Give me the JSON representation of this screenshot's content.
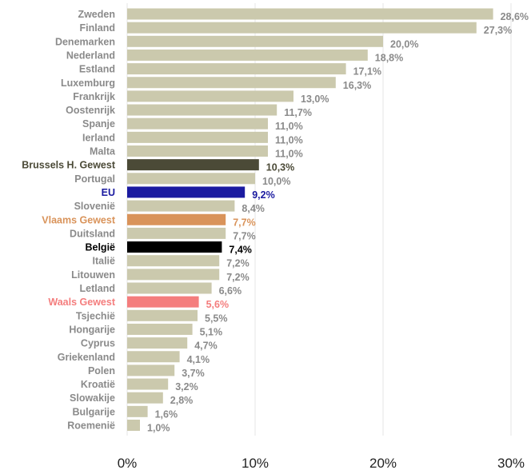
{
  "chart_data": {
    "type": "bar",
    "orientation": "horizontal",
    "title": "",
    "xlabel": "",
    "ylabel": "",
    "xlim": [
      0,
      30
    ],
    "x_ticks": [
      0,
      10,
      20,
      30
    ],
    "x_tick_labels": [
      "0%",
      "10%",
      "20%",
      "30%"
    ],
    "grid": true,
    "categories": [
      "Zweden",
      "Finland",
      "Denemarken",
      "Nederland",
      "Estland",
      "Luxemburg",
      "Frankrijk",
      "Oostenrijk",
      "Spanje",
      "Ierland",
      "Malta",
      "Brussels H. Gewest",
      "Portugal",
      "EU",
      "Slovenië",
      "Vlaams Gewest",
      "Duitsland",
      "België",
      "Italië",
      "Litouwen",
      "Letland",
      "Waals Gewest",
      "Tsjechië",
      "Hongarije",
      "Cyprus",
      "Griekenland",
      "Polen",
      "Kroatië",
      "Slowakije",
      "Bulgarije",
      "Roemenië"
    ],
    "values": [
      28.6,
      27.3,
      20.0,
      18.8,
      17.1,
      16.3,
      13.0,
      11.7,
      11.0,
      11.0,
      11.0,
      10.3,
      10.0,
      9.2,
      8.4,
      7.7,
      7.7,
      7.4,
      7.2,
      7.2,
      6.6,
      5.6,
      5.5,
      5.1,
      4.7,
      4.1,
      3.7,
      3.2,
      2.8,
      1.6,
      1.0
    ],
    "value_labels": [
      "28,6%",
      "27,3%",
      "20,0%",
      "18,8%",
      "17,1%",
      "16,3%",
      "13,0%",
      "11,7%",
      "11,0%",
      "11,0%",
      "11,0%",
      "10,3%",
      "10,0%",
      "9,2%",
      "8,4%",
      "7,7%",
      "7,7%",
      "7,4%",
      "7,2%",
      "7,2%",
      "6,6%",
      "5,6%",
      "5,5%",
      "5,1%",
      "4,7%",
      "4,1%",
      "3,7%",
      "3,2%",
      "2,8%",
      "1,6%",
      "1,0%"
    ],
    "colors": {
      "default_bar": "#cbc9ad",
      "default_label": "#8a8a8a",
      "highlights": {
        "Brussels H. Gewest": "#4b4a37",
        "EU": "#1a1aa0",
        "Vlaams Gewest": "#d9935a",
        "België": "#000000",
        "Waals Gewest": "#f47d7d"
      }
    }
  }
}
